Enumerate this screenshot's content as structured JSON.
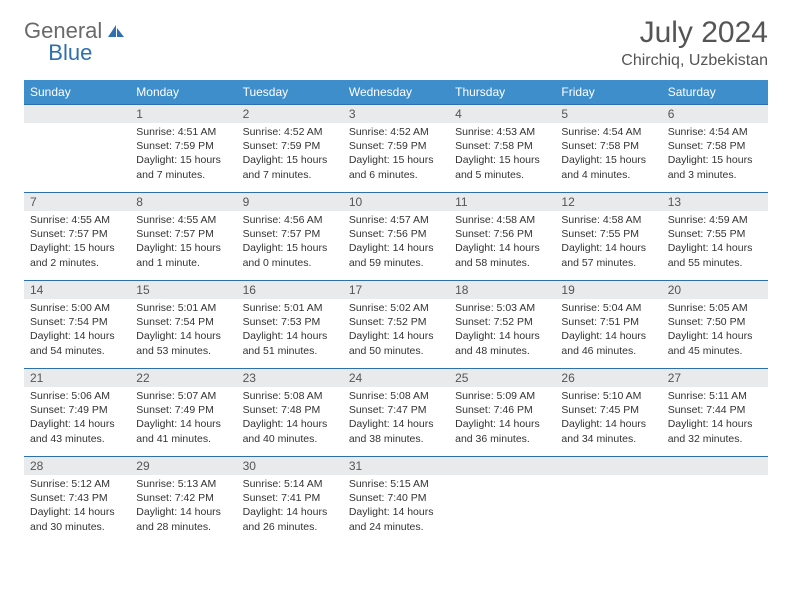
{
  "brand": {
    "part1": "General",
    "part2": "Blue"
  },
  "title": "July 2024",
  "location": "Chirchiq, Uzbekistan",
  "colors": {
    "header_bg": "#3e8ecb",
    "header_text": "#ffffff",
    "row_border": "#2f6fb0",
    "daynum_bg": "#e9eaec",
    "text": "#333333",
    "page_bg": "#ffffff"
  },
  "day_headers": [
    "Sunday",
    "Monday",
    "Tuesday",
    "Wednesday",
    "Thursday",
    "Friday",
    "Saturday"
  ],
  "weeks": [
    [
      {
        "n": "",
        "sr": "",
        "ss": "",
        "dl": ""
      },
      {
        "n": "1",
        "sr": "Sunrise: 4:51 AM",
        "ss": "Sunset: 7:59 PM",
        "dl": "Daylight: 15 hours and 7 minutes."
      },
      {
        "n": "2",
        "sr": "Sunrise: 4:52 AM",
        "ss": "Sunset: 7:59 PM",
        "dl": "Daylight: 15 hours and 7 minutes."
      },
      {
        "n": "3",
        "sr": "Sunrise: 4:52 AM",
        "ss": "Sunset: 7:59 PM",
        "dl": "Daylight: 15 hours and 6 minutes."
      },
      {
        "n": "4",
        "sr": "Sunrise: 4:53 AM",
        "ss": "Sunset: 7:58 PM",
        "dl": "Daylight: 15 hours and 5 minutes."
      },
      {
        "n": "5",
        "sr": "Sunrise: 4:54 AM",
        "ss": "Sunset: 7:58 PM",
        "dl": "Daylight: 15 hours and 4 minutes."
      },
      {
        "n": "6",
        "sr": "Sunrise: 4:54 AM",
        "ss": "Sunset: 7:58 PM",
        "dl": "Daylight: 15 hours and 3 minutes."
      }
    ],
    [
      {
        "n": "7",
        "sr": "Sunrise: 4:55 AM",
        "ss": "Sunset: 7:57 PM",
        "dl": "Daylight: 15 hours and 2 minutes."
      },
      {
        "n": "8",
        "sr": "Sunrise: 4:55 AM",
        "ss": "Sunset: 7:57 PM",
        "dl": "Daylight: 15 hours and 1 minute."
      },
      {
        "n": "9",
        "sr": "Sunrise: 4:56 AM",
        "ss": "Sunset: 7:57 PM",
        "dl": "Daylight: 15 hours and 0 minutes."
      },
      {
        "n": "10",
        "sr": "Sunrise: 4:57 AM",
        "ss": "Sunset: 7:56 PM",
        "dl": "Daylight: 14 hours and 59 minutes."
      },
      {
        "n": "11",
        "sr": "Sunrise: 4:58 AM",
        "ss": "Sunset: 7:56 PM",
        "dl": "Daylight: 14 hours and 58 minutes."
      },
      {
        "n": "12",
        "sr": "Sunrise: 4:58 AM",
        "ss": "Sunset: 7:55 PM",
        "dl": "Daylight: 14 hours and 57 minutes."
      },
      {
        "n": "13",
        "sr": "Sunrise: 4:59 AM",
        "ss": "Sunset: 7:55 PM",
        "dl": "Daylight: 14 hours and 55 minutes."
      }
    ],
    [
      {
        "n": "14",
        "sr": "Sunrise: 5:00 AM",
        "ss": "Sunset: 7:54 PM",
        "dl": "Daylight: 14 hours and 54 minutes."
      },
      {
        "n": "15",
        "sr": "Sunrise: 5:01 AM",
        "ss": "Sunset: 7:54 PM",
        "dl": "Daylight: 14 hours and 53 minutes."
      },
      {
        "n": "16",
        "sr": "Sunrise: 5:01 AM",
        "ss": "Sunset: 7:53 PM",
        "dl": "Daylight: 14 hours and 51 minutes."
      },
      {
        "n": "17",
        "sr": "Sunrise: 5:02 AM",
        "ss": "Sunset: 7:52 PM",
        "dl": "Daylight: 14 hours and 50 minutes."
      },
      {
        "n": "18",
        "sr": "Sunrise: 5:03 AM",
        "ss": "Sunset: 7:52 PM",
        "dl": "Daylight: 14 hours and 48 minutes."
      },
      {
        "n": "19",
        "sr": "Sunrise: 5:04 AM",
        "ss": "Sunset: 7:51 PM",
        "dl": "Daylight: 14 hours and 46 minutes."
      },
      {
        "n": "20",
        "sr": "Sunrise: 5:05 AM",
        "ss": "Sunset: 7:50 PM",
        "dl": "Daylight: 14 hours and 45 minutes."
      }
    ],
    [
      {
        "n": "21",
        "sr": "Sunrise: 5:06 AM",
        "ss": "Sunset: 7:49 PM",
        "dl": "Daylight: 14 hours and 43 minutes."
      },
      {
        "n": "22",
        "sr": "Sunrise: 5:07 AM",
        "ss": "Sunset: 7:49 PM",
        "dl": "Daylight: 14 hours and 41 minutes."
      },
      {
        "n": "23",
        "sr": "Sunrise: 5:08 AM",
        "ss": "Sunset: 7:48 PM",
        "dl": "Daylight: 14 hours and 40 minutes."
      },
      {
        "n": "24",
        "sr": "Sunrise: 5:08 AM",
        "ss": "Sunset: 7:47 PM",
        "dl": "Daylight: 14 hours and 38 minutes."
      },
      {
        "n": "25",
        "sr": "Sunrise: 5:09 AM",
        "ss": "Sunset: 7:46 PM",
        "dl": "Daylight: 14 hours and 36 minutes."
      },
      {
        "n": "26",
        "sr": "Sunrise: 5:10 AM",
        "ss": "Sunset: 7:45 PM",
        "dl": "Daylight: 14 hours and 34 minutes."
      },
      {
        "n": "27",
        "sr": "Sunrise: 5:11 AM",
        "ss": "Sunset: 7:44 PM",
        "dl": "Daylight: 14 hours and 32 minutes."
      }
    ],
    [
      {
        "n": "28",
        "sr": "Sunrise: 5:12 AM",
        "ss": "Sunset: 7:43 PM",
        "dl": "Daylight: 14 hours and 30 minutes."
      },
      {
        "n": "29",
        "sr": "Sunrise: 5:13 AM",
        "ss": "Sunset: 7:42 PM",
        "dl": "Daylight: 14 hours and 28 minutes."
      },
      {
        "n": "30",
        "sr": "Sunrise: 5:14 AM",
        "ss": "Sunset: 7:41 PM",
        "dl": "Daylight: 14 hours and 26 minutes."
      },
      {
        "n": "31",
        "sr": "Sunrise: 5:15 AM",
        "ss": "Sunset: 7:40 PM",
        "dl": "Daylight: 14 hours and 24 minutes."
      },
      {
        "n": "",
        "sr": "",
        "ss": "",
        "dl": ""
      },
      {
        "n": "",
        "sr": "",
        "ss": "",
        "dl": ""
      },
      {
        "n": "",
        "sr": "",
        "ss": "",
        "dl": ""
      }
    ]
  ]
}
